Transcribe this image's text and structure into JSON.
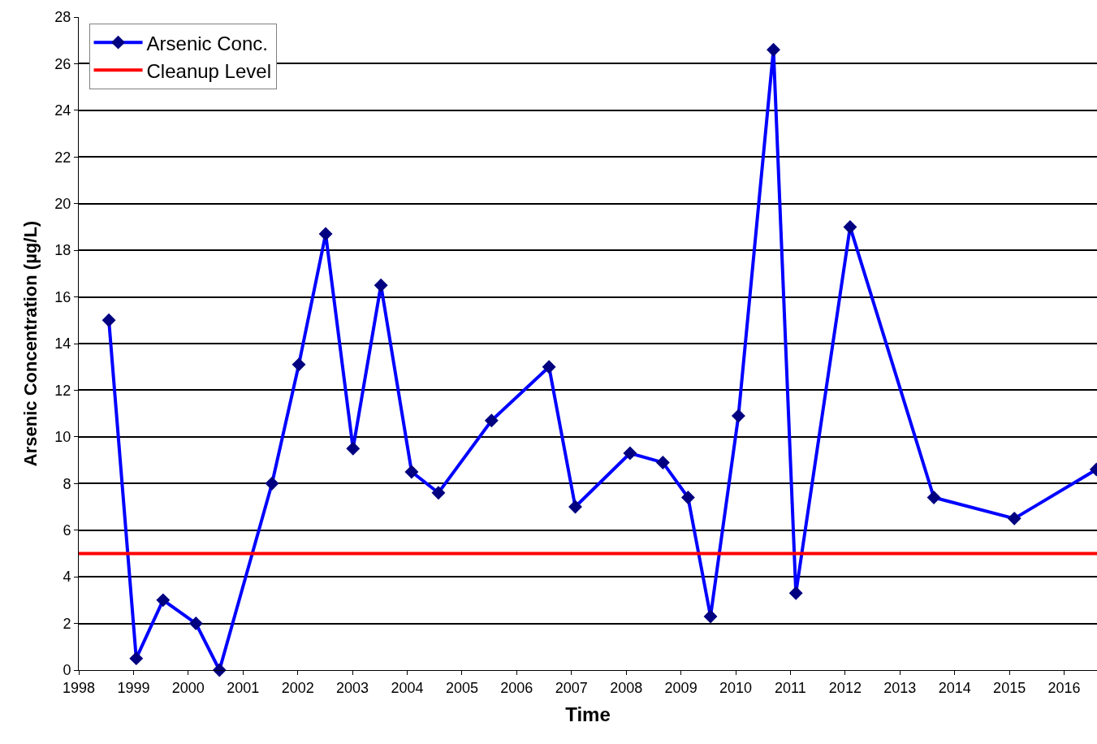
{
  "chart_data": {
    "type": "line",
    "xlabel": "Time",
    "ylabel": "Arsenic Concentration (µg/L)",
    "series": [
      {
        "name": "Arsenic Conc.",
        "color": "#0000ff",
        "marker": "diamond",
        "x": [
          1998.55,
          1999.05,
          1999.54,
          2000.14,
          2000.57,
          2001.53,
          2002.02,
          2002.51,
          2003.01,
          2003.52,
          2004.08,
          2004.57,
          2005.54,
          2006.59,
          2007.07,
          2008.07,
          2008.67,
          2009.13,
          2009.54,
          2010.05,
          2010.69,
          2011.1,
          2012.09,
          2013.62,
          2015.09,
          2016.59
        ],
        "values": [
          15,
          0.5,
          3,
          2,
          0,
          8,
          13.1,
          18.7,
          9.5,
          16.5,
          8.5,
          7.6,
          10.7,
          13,
          7,
          9.3,
          8.9,
          7.4,
          2.3,
          10.9,
          26.6,
          3.3,
          19,
          7.4,
          6.5,
          8.6
        ]
      }
    ],
    "ref_lines": [
      {
        "axis": "y",
        "value": 5,
        "label": "Cleanup Level",
        "color": "#ff0000"
      }
    ],
    "xlim": [
      1998,
      2016.6
    ],
    "xticks": [
      1998,
      1999,
      2000,
      2001,
      2002,
      2003,
      2004,
      2005,
      2006,
      2007,
      2008,
      2009,
      2010,
      2011,
      2012,
      2013,
      2014,
      2015,
      2016
    ],
    "ylim": [
      0,
      28
    ],
    "yticks": [
      0,
      2,
      4,
      6,
      8,
      10,
      12,
      14,
      16,
      18,
      20,
      22,
      24,
      26,
      28
    ],
    "grid": "y",
    "legend": "top left"
  }
}
